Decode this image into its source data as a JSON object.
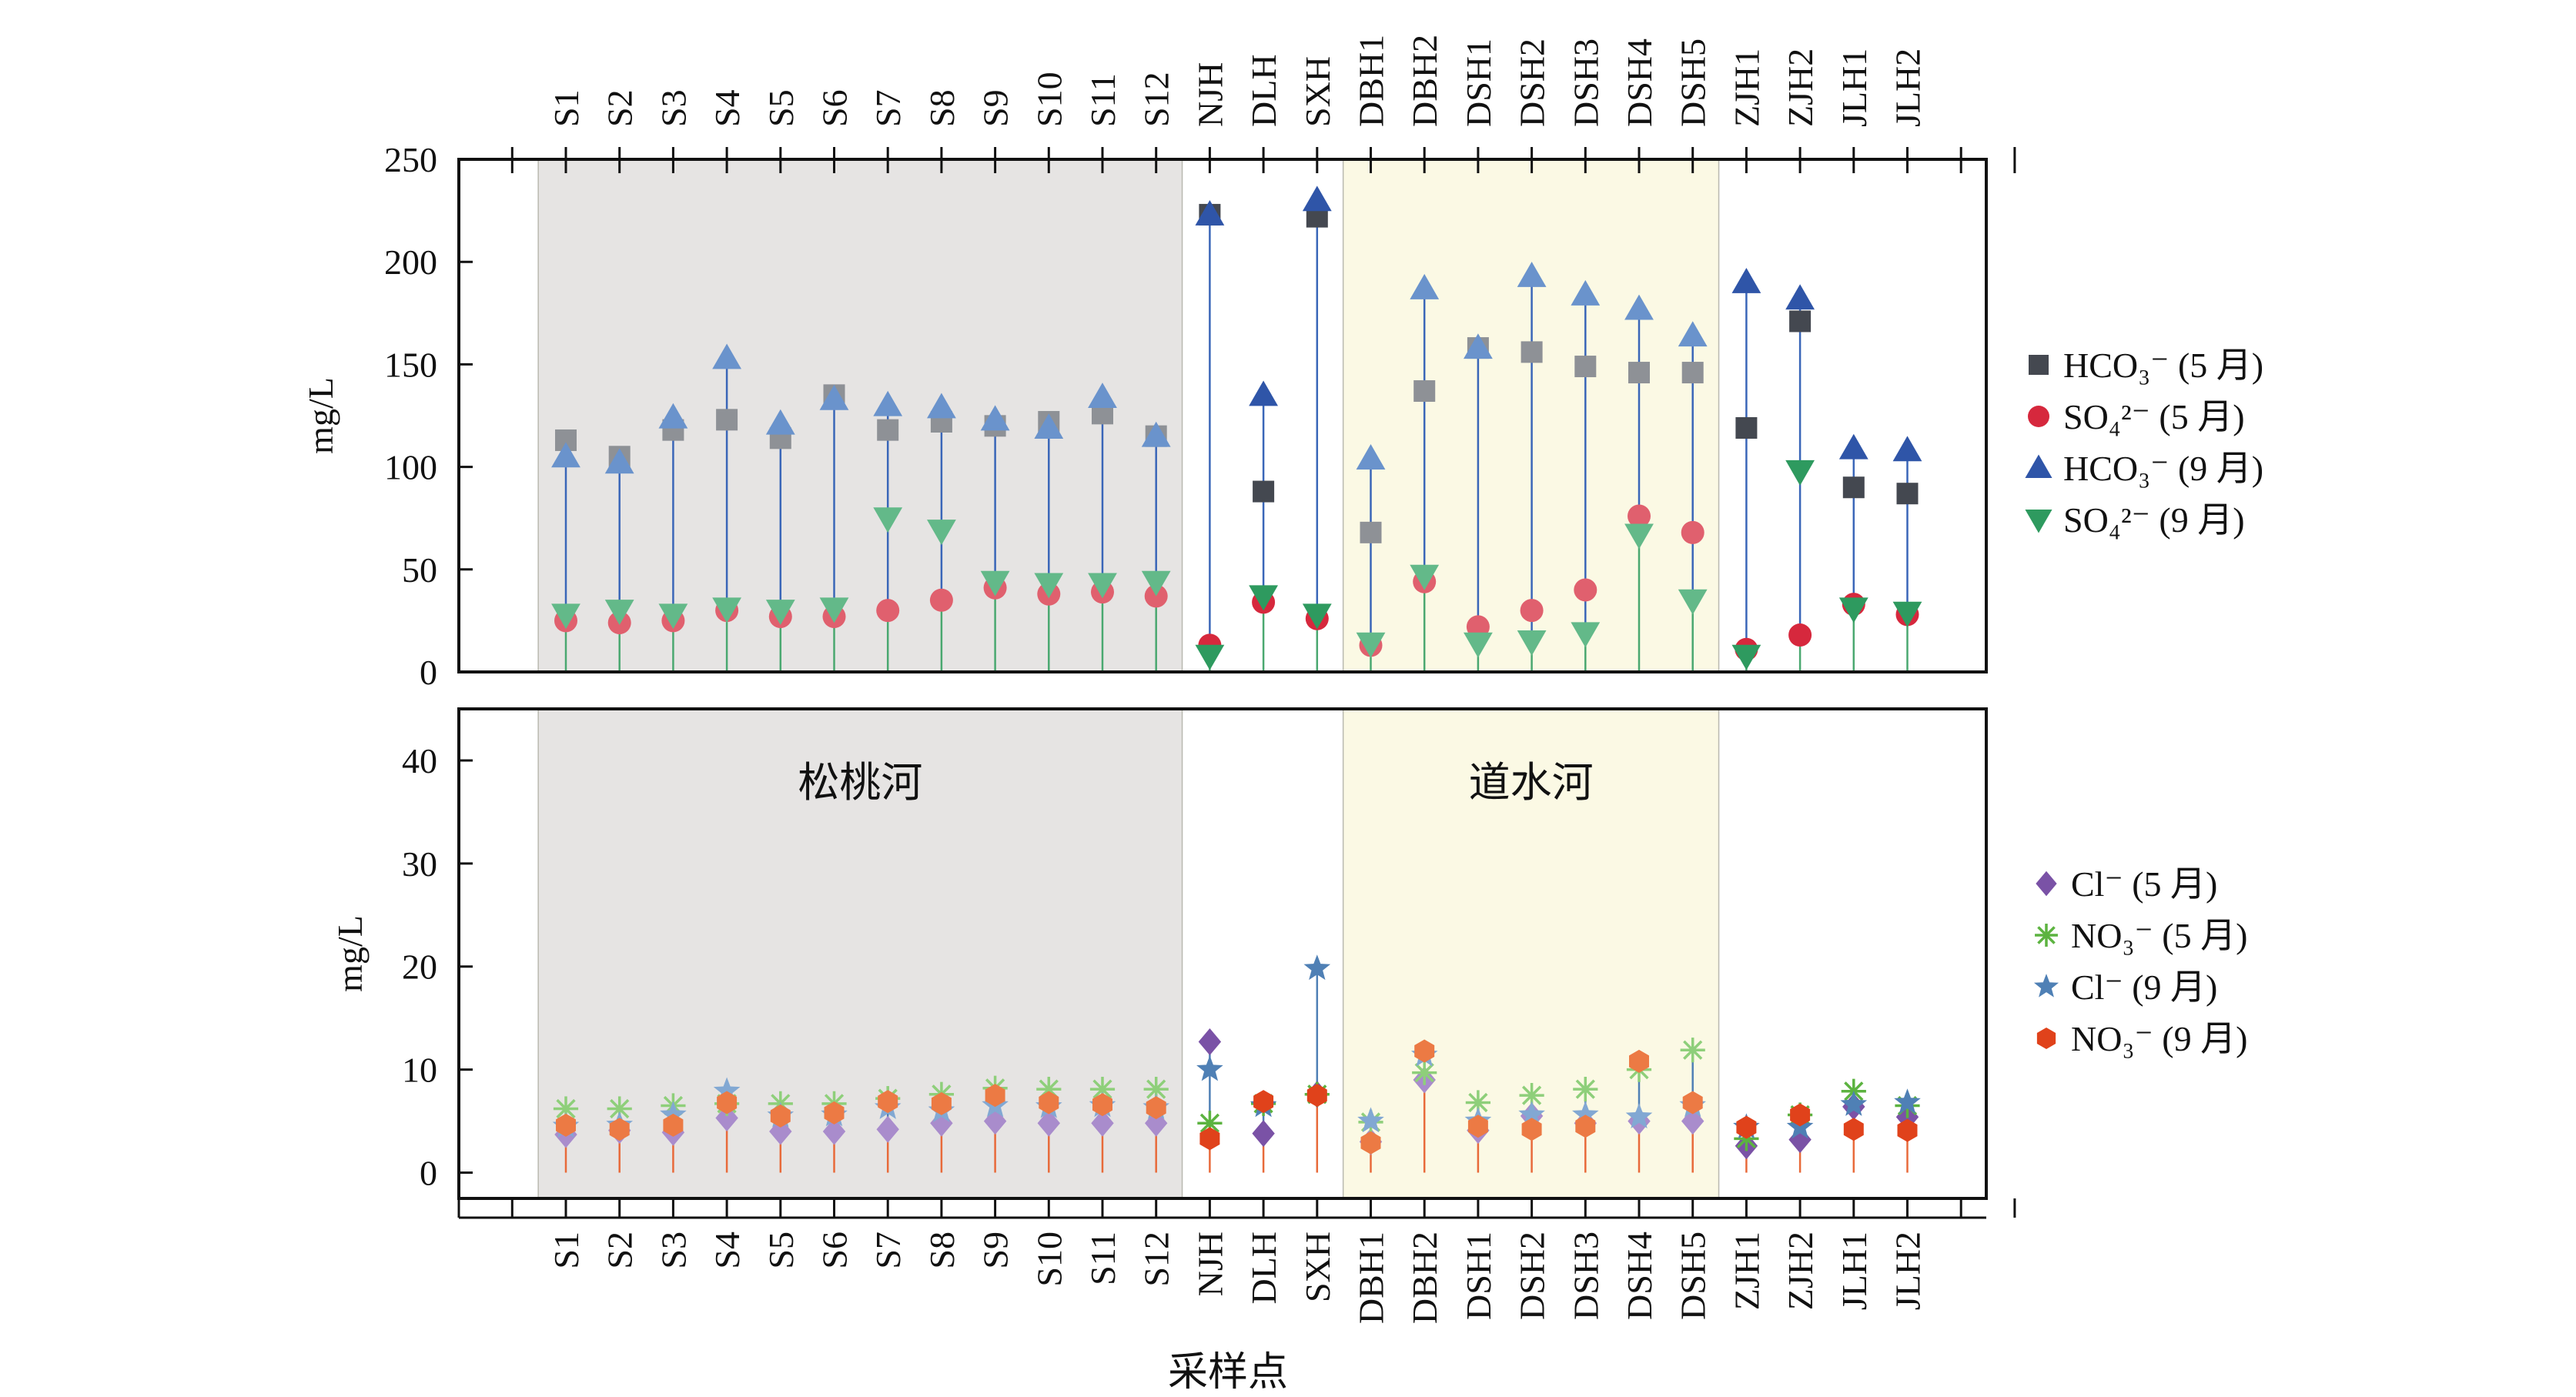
{
  "chart_data": {
    "type": "scatter",
    "categories": [
      "S1",
      "S2",
      "S3",
      "S4",
      "S5",
      "S6",
      "S7",
      "S8",
      "S9",
      "S10",
      "S11",
      "S12",
      "NJH",
      "DLH",
      "SXH",
      "DBH1",
      "DBH2",
      "DSH1",
      "DSH2",
      "DSH3",
      "DSH4",
      "DSH5",
      "ZJH1",
      "ZJH2",
      "JLH1",
      "JLH2"
    ],
    "xlabel": "采样点",
    "regions": [
      {
        "label": "松桃河",
        "from": "S1",
        "to": "S12",
        "color": "#e6e4e3"
      },
      {
        "label": "道水河",
        "from": "DBH1",
        "to": "DSH5",
        "color": "#fbf9e4"
      }
    ],
    "panels": [
      {
        "ylabel": "mg/L",
        "ylim": [
          0,
          250
        ],
        "yticks": [
          0,
          50,
          100,
          150,
          200,
          250
        ],
        "series": [
          {
            "name": "HCO₃⁻ (5 月)",
            "marker": "square",
            "color": "#444850",
            "faded_color": "#8e9196",
            "values": [
              113,
              105,
              118,
              123,
              114,
              135,
              118,
              122,
              120,
              122,
              126,
              115,
              223,
              88,
              222,
              68,
              137,
              158,
              156,
              149,
              146,
              146,
              119,
              171,
              90,
              87
            ]
          },
          {
            "name": "SO₄²⁻ (5 月)",
            "marker": "circle",
            "color": "#d6283d",
            "faded_color": "#e0606e",
            "values": [
              25,
              24,
              25,
              30,
              27,
              27,
              30,
              35,
              41,
              38,
              39,
              37,
              13,
              34,
              26,
              13,
              44,
              22,
              30,
              40,
              76,
              68,
              11,
              18,
              33,
              28
            ]
          },
          {
            "name": "HCO₃⁻ (9 月)",
            "marker": "triangle-up",
            "color": "#2f55a8",
            "faded_color": "#6a93cc",
            "values": [
              105,
              102,
              124,
              153,
              121,
              133,
              130,
              129,
              123,
              119,
              134,
              115,
              223,
              135,
              230,
              104,
              187,
              158,
              193,
              184,
              177,
              164,
              190,
              182,
              109,
              108
            ]
          },
          {
            "name": "SO₄²⁻ (9 月)",
            "marker": "triangle-down",
            "color": "#2e9a5f",
            "faded_color": "#63b989",
            "values": [
              28,
              30,
              28,
              31,
              30,
              31,
              75,
              69,
              44,
              43,
              43,
              44,
              8,
              37,
              28,
              14,
              47,
              14,
              15,
              19,
              67,
              35,
              8,
              98,
              31,
              29
            ]
          }
        ]
      },
      {
        "ylabel": "mg/L",
        "ylim": [
          -2.5,
          45
        ],
        "yticks": [
          0,
          10,
          20,
          30,
          40
        ],
        "series": [
          {
            "name": "Cl⁻ (5 月)",
            "marker": "diamond",
            "color": "#7a52a6",
            "faded_color": "#a98ccc",
            "values": [
              3.7,
              4.1,
              3.9,
              5.3,
              4.0,
              4.0,
              4.2,
              4.8,
              5.0,
              4.8,
              4.8,
              4.8,
              12.7,
              3.8,
              7.6,
              3.0,
              9.0,
              4.1,
              5.5,
              4.8,
              5.0,
              5.0,
              2.6,
              3.2,
              6.4,
              5.4
            ]
          },
          {
            "name": "NO₃⁻ (5 月)",
            "marker": "asterisk",
            "color": "#5cb340",
            "faded_color": "#8ecf7a",
            "values": [
              6.2,
              6.2,
              6.5,
              6.7,
              6.7,
              6.7,
              7.2,
              7.6,
              8.2,
              8.1,
              8.1,
              8.1,
              4.8,
              6.7,
              7.6,
              4.9,
              9.7,
              6.8,
              7.5,
              8.1,
              10.0,
              11.9,
              3.3,
              5.6,
              7.9,
              6.5
            ]
          },
          {
            "name": "Cl⁻ (9 月)",
            "marker": "star",
            "color": "#4f80b5",
            "faded_color": "#82a8d3",
            "values": [
              4.5,
              4.6,
              5.6,
              7.9,
              5.5,
              5.6,
              6.3,
              6.0,
              6.5,
              6.4,
              6.5,
              6.3,
              10.0,
              6.5,
              19.8,
              5.0,
              11.4,
              5.0,
              5.6,
              5.6,
              5.4,
              6.5,
              4.4,
              4.4,
              6.6,
              6.8
            ]
          },
          {
            "name": "NO₃⁻ (9 月)",
            "marker": "hexagon",
            "color": "#e0421b",
            "faded_color": "#ec7a44",
            "values": [
              4.6,
              4.2,
              4.6,
              6.8,
              5.5,
              5.8,
              6.9,
              6.7,
              7.5,
              6.8,
              6.6,
              6.3,
              3.3,
              6.9,
              7.5,
              2.9,
              11.8,
              4.5,
              4.2,
              4.5,
              10.8,
              6.8,
              4.4,
              5.6,
              4.2,
              4.1
            ]
          }
        ]
      }
    ]
  }
}
